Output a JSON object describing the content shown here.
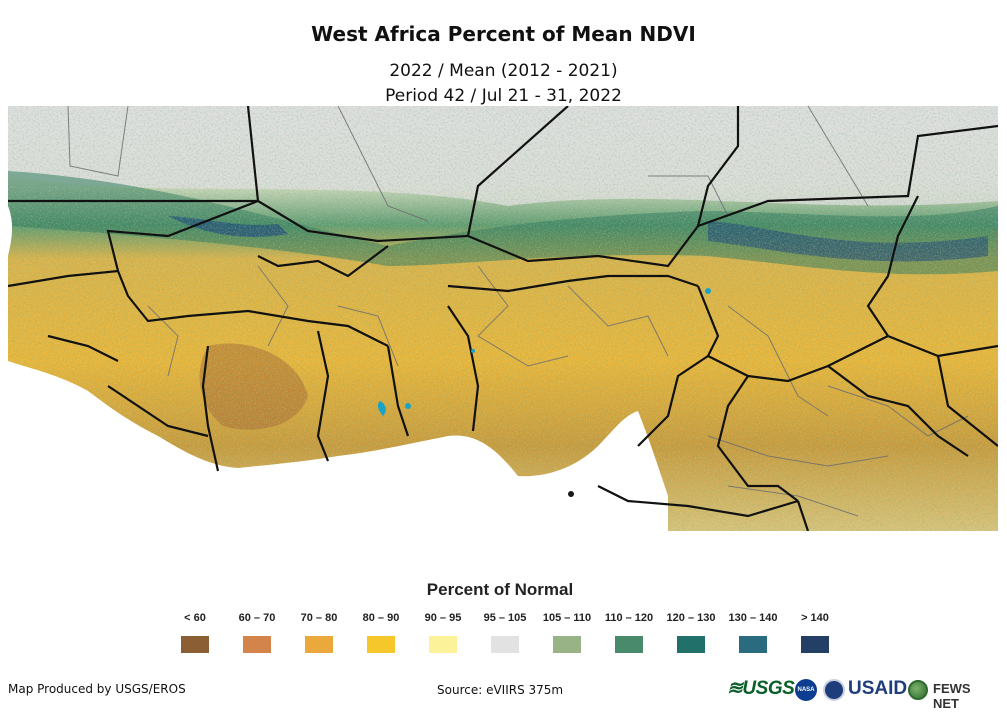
{
  "title": "West Africa Percent of Mean NDVI",
  "subtitle_line1": "2022 / Mean (2012 - 2021)",
  "subtitle_line2": "Period 42 / Jul 21 - 31, 2022",
  "legend": {
    "title": "Percent of Normal",
    "items": [
      {
        "label": "< 60",
        "color": "#8b5e34"
      },
      {
        "label": "60 – 70",
        "color": "#d2844a"
      },
      {
        "label": "70 – 80",
        "color": "#eaa93a"
      },
      {
        "label": "80 – 90",
        "color": "#f5c72b"
      },
      {
        "label": "90 – 95",
        "color": "#fbf29a"
      },
      {
        "label": "95 – 105",
        "color": "#e2e2e2"
      },
      {
        "label": "105 – 110",
        "color": "#98b487"
      },
      {
        "label": "110 – 120",
        "color": "#4a8a6c"
      },
      {
        "label": "120 – 130",
        "color": "#22706a"
      },
      {
        "label": "130 – 140",
        "color": "#2b6b80"
      },
      {
        "label": "> 140",
        "color": "#243f66"
      }
    ]
  },
  "footer": {
    "producer": "Map Produced by USGS/EROS",
    "source": "Source: eVIIRS 375m"
  },
  "logos": {
    "usgs": "≋USGS",
    "nasa": "NASA",
    "usaid": "USAID",
    "fews": "FEWS NET"
  }
}
